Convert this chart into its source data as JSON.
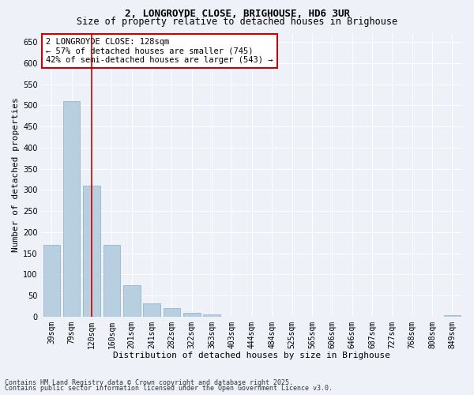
{
  "title1": "2, LONGROYDE CLOSE, BRIGHOUSE, HD6 3UR",
  "title2": "Size of property relative to detached houses in Brighouse",
  "xlabel": "Distribution of detached houses by size in Brighouse",
  "ylabel": "Number of detached properties",
  "categories": [
    "39sqm",
    "79sqm",
    "120sqm",
    "160sqm",
    "201sqm",
    "241sqm",
    "282sqm",
    "322sqm",
    "363sqm",
    "403sqm",
    "444sqm",
    "484sqm",
    "525sqm",
    "565sqm",
    "606sqm",
    "646sqm",
    "687sqm",
    "727sqm",
    "768sqm",
    "808sqm",
    "849sqm"
  ],
  "values": [
    170,
    510,
    310,
    170,
    75,
    32,
    20,
    8,
    5,
    0,
    0,
    0,
    0,
    0,
    0,
    0,
    0,
    0,
    0,
    0,
    3
  ],
  "bar_color": "#b8cfe0",
  "bar_edge_color": "#8aafc8",
  "vline_x": 2,
  "vline_color": "#cc0000",
  "annotation_text": "2 LONGROYDE CLOSE: 128sqm\n← 57% of detached houses are smaller (745)\n42% of semi-detached houses are larger (543) →",
  "annotation_box_color": "white",
  "annotation_box_edge_color": "#cc0000",
  "ylim": [
    0,
    670
  ],
  "yticks": [
    0,
    50,
    100,
    150,
    200,
    250,
    300,
    350,
    400,
    450,
    500,
    550,
    600,
    650
  ],
  "footer1": "Contains HM Land Registry data © Crown copyright and database right 2025.",
  "footer2": "Contains public sector information licensed under the Open Government Licence v3.0.",
  "background_color": "#eef2f8",
  "grid_color": "#ffffff",
  "title_fontsize": 9,
  "subtitle_fontsize": 8.5,
  "axis_label_fontsize": 8,
  "tick_fontsize": 7,
  "annotation_fontsize": 7.5,
  "footer_fontsize": 6
}
